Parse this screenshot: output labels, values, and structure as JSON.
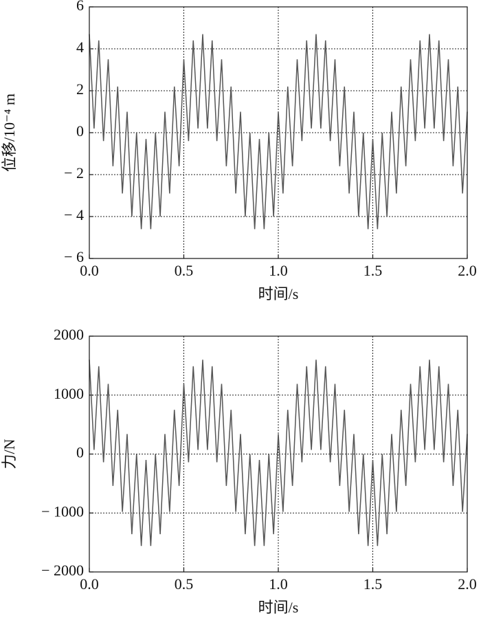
{
  "chart_data": [
    {
      "type": "line",
      "ylabel": "位移/10⁻⁴ m",
      "xlabel": "时间/s",
      "color": "#555555",
      "grid": true,
      "xlim": [
        0,
        2
      ],
      "ylim": [
        -6,
        6
      ],
      "xticks": [
        {
          "value": 0,
          "label": "0.0"
        },
        0.5,
        {
          "value": 1,
          "label": "1.0"
        },
        1.5,
        {
          "value": 2,
          "label": "2.0"
        }
      ],
      "yticks": [
        {
          "value": -6,
          "label": "− 6"
        },
        {
          "value": -4,
          "label": "− 4"
        },
        {
          "value": -2,
          "label": "− 2"
        },
        0,
        2,
        4,
        6
      ],
      "x": [
        0,
        0.025,
        0.05,
        0.075,
        0.1,
        0.125,
        0.15,
        0.175,
        0.2,
        0.225,
        0.25,
        0.275,
        0.3,
        0.325,
        0.35,
        0.375,
        0.4,
        0.425,
        0.45,
        0.475,
        0.5,
        0.525,
        0.55,
        0.575,
        0.6,
        0.625,
        0.65,
        0.675,
        0.7,
        0.725,
        0.75,
        0.775,
        0.8,
        0.825,
        0.85,
        0.875,
        0.9,
        0.925,
        0.95,
        0.975,
        1,
        1.025,
        1.05,
        1.075,
        1.1,
        1.125,
        1.15,
        1.175,
        1.2,
        1.225,
        1.25,
        1.275,
        1.3,
        1.325,
        1.35,
        1.375,
        1.4,
        1.425,
        1.45,
        1.475,
        1.5,
        1.525,
        1.55,
        1.575,
        1.6,
        1.625,
        1.65,
        1.675,
        1.7,
        1.725,
        1.75,
        1.775,
        1.8,
        1.825,
        1.85,
        1.875,
        1.9,
        1.925,
        1.95,
        1.975,
        2
      ],
      "values": [
        4.7,
        0.2,
        4.4,
        -0.4,
        3.5,
        -1.6,
        2.2,
        -2.9,
        1.0,
        -4.0,
        0.0,
        -4.6,
        -0.3,
        -4.6,
        0.0,
        -4.0,
        1.0,
        -2.9,
        2.2,
        -1.6,
        3.5,
        -0.4,
        4.4,
        0.2,
        4.7,
        0.2,
        4.4,
        -0.4,
        3.5,
        -1.6,
        2.2,
        -2.9,
        1.0,
        -4.0,
        0.0,
        -4.6,
        -0.3,
        -4.6,
        0.0,
        -4.0,
        1.0,
        -2.9,
        2.2,
        -1.6,
        3.5,
        -0.4,
        4.4,
        0.2,
        4.7,
        0.2,
        4.4,
        -0.4,
        3.5,
        -1.6,
        2.2,
        -2.9,
        1.0,
        -4.0,
        0.0,
        -4.6,
        -0.3,
        -4.6,
        0.0,
        -4.0,
        1.0,
        -2.9,
        2.2,
        -1.6,
        3.5,
        -0.4,
        4.4,
        0.2,
        4.7,
        0.2,
        4.4,
        -0.4,
        3.5,
        -1.6,
        2.2,
        -2.9,
        1.0
      ]
    },
    {
      "type": "line",
      "ylabel": "力/N",
      "xlabel": "时间/s",
      "color": "#555555",
      "grid": true,
      "xlim": [
        0,
        2
      ],
      "ylim": [
        -2000,
        2000
      ],
      "xticks": [
        {
          "value": 0,
          "label": "0.0"
        },
        0.5,
        {
          "value": 1,
          "label": "1.0"
        },
        1.5,
        {
          "value": 2,
          "label": "2.0"
        }
      ],
      "yticks": [
        {
          "value": -2000,
          "label": "− 2000"
        },
        {
          "value": -1000,
          "label": "− 1000"
        },
        0,
        1000,
        2000
      ],
      "x": [
        0,
        0.025,
        0.05,
        0.075,
        0.1,
        0.125,
        0.15,
        0.175,
        0.2,
        0.225,
        0.25,
        0.275,
        0.3,
        0.325,
        0.35,
        0.375,
        0.4,
        0.425,
        0.45,
        0.475,
        0.5,
        0.525,
        0.55,
        0.575,
        0.6,
        0.625,
        0.65,
        0.675,
        0.7,
        0.725,
        0.75,
        0.775,
        0.8,
        0.825,
        0.85,
        0.875,
        0.9,
        0.925,
        0.95,
        0.975,
        1,
        1.025,
        1.05,
        1.075,
        1.1,
        1.125,
        1.15,
        1.175,
        1.2,
        1.225,
        1.25,
        1.275,
        1.3,
        1.325,
        1.35,
        1.375,
        1.4,
        1.425,
        1.45,
        1.475,
        1.5,
        1.525,
        1.55,
        1.575,
        1.6,
        1.625,
        1.65,
        1.675,
        1.7,
        1.725,
        1.75,
        1.775,
        1.8,
        1.825,
        1.85,
        1.875,
        1.9,
        1.925,
        1.95,
        1.975,
        2
      ],
      "values": [
        1600,
        70,
        1490,
        -140,
        1190,
        -540,
        750,
        -980,
        340,
        -1360,
        0,
        -1560,
        -100,
        -1560,
        0,
        -1360,
        340,
        -980,
        750,
        -540,
        1190,
        -140,
        1490,
        70,
        1600,
        70,
        1490,
        -140,
        1190,
        -540,
        750,
        -980,
        340,
        -1360,
        0,
        -1560,
        -100,
        -1560,
        0,
        -1360,
        340,
        -980,
        750,
        -540,
        1190,
        -140,
        1490,
        70,
        1600,
        70,
        1490,
        -140,
        1190,
        -540,
        750,
        -980,
        340,
        -1360,
        0,
        -1560,
        -100,
        -1560,
        0,
        -1360,
        340,
        -980,
        750,
        -540,
        1190,
        -140,
        1490,
        70,
        1600,
        70,
        1490,
        -140,
        1190,
        -540,
        750,
        -980,
        340
      ]
    }
  ]
}
